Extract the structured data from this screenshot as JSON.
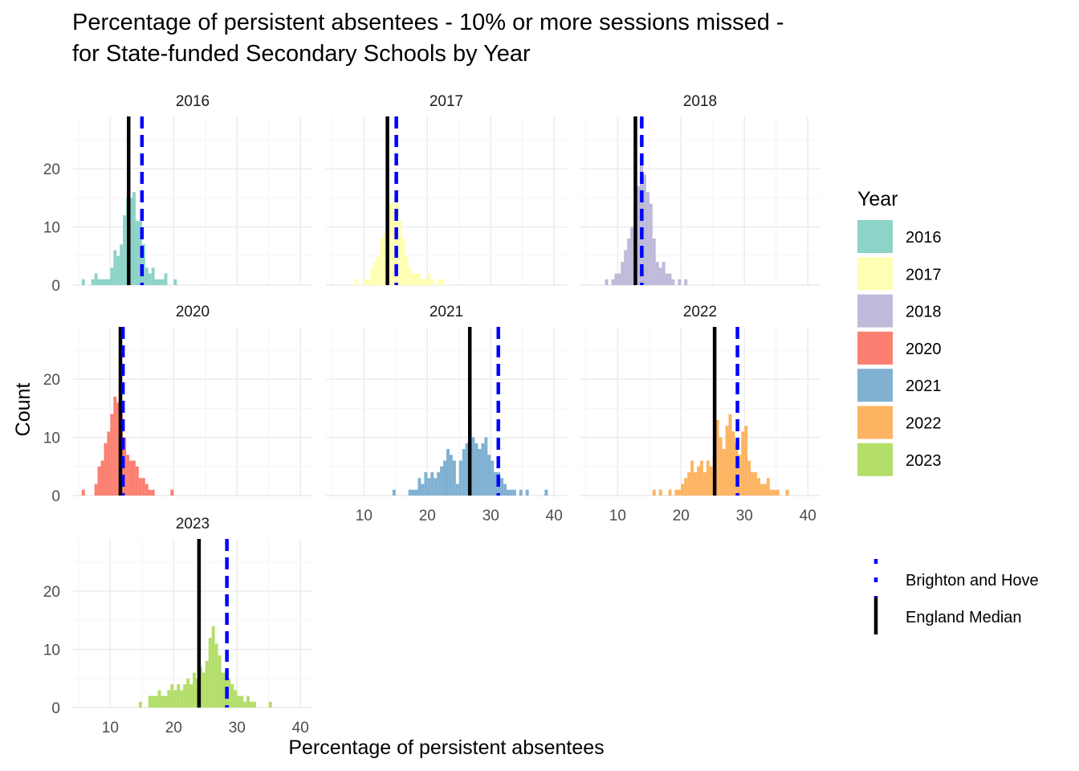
{
  "title": {
    "line1": "Percentage of persistent absentees - 10% or more sessions missed -",
    "line2": "for State-funded Secondary Schools by Year"
  },
  "chart_data": {
    "type": "histogram",
    "xlabel": "Percentage of persistent absentees",
    "ylabel": "Count",
    "xlim": [
      4,
      42
    ],
    "ylim": [
      0,
      29
    ],
    "x_ticks": [
      10,
      20,
      30,
      40
    ],
    "y_ticks": [
      0,
      10,
      20
    ],
    "bin_width": 0.5,
    "grid": true,
    "legend_placement": "right",
    "legend_title": "Year",
    "colors": {
      "2016": "#8dd3c7",
      "2017": "#ffffb3",
      "2018": "#bebada",
      "2020": "#fb8072",
      "2021": "#80b1d3",
      "2022": "#fdb462",
      "2023": "#b3de69"
    },
    "reference_lines": [
      {
        "name": "Brighton and Hove",
        "style": "dashed",
        "color": "#0000ff"
      },
      {
        "name": "England Median",
        "style": "solid",
        "color": "#000000"
      }
    ],
    "panels": [
      {
        "year": "2016",
        "england_median": 12.9,
        "brighton_hove": 15.0,
        "bin_start": 5.5,
        "counts": [
          1,
          0,
          0,
          1,
          2,
          1,
          1,
          1,
          1,
          3,
          6,
          5,
          7,
          12,
          15,
          15,
          16,
          11,
          11,
          7,
          3,
          2,
          3,
          1,
          1,
          1,
          2,
          0,
          0,
          1
        ]
      },
      {
        "year": "2017",
        "england_median": 13.7,
        "brighton_hove": 15.1,
        "bin_start": 7.0,
        "counts": [
          0,
          0,
          0,
          1,
          0,
          0,
          1,
          1,
          3,
          4,
          5,
          8,
          9,
          12,
          14,
          15,
          14,
          11,
          8,
          5,
          3,
          2,
          2,
          2,
          1,
          1,
          2,
          1,
          0,
          1,
          1
        ]
      },
      {
        "year": "2018",
        "england_median": 12.8,
        "brighton_hove": 13.8,
        "bin_start": 7.5,
        "counts": [
          0,
          1,
          0,
          1,
          2,
          2,
          4,
          6,
          8,
          10,
          13,
          17,
          21,
          19,
          16,
          14,
          8,
          4,
          3,
          4,
          2,
          2,
          1,
          0,
          1,
          0,
          1
        ]
      },
      {
        "year": "2020",
        "england_median": 11.6,
        "brighton_hove": 12.0,
        "bin_start": 5.5,
        "counts": [
          1,
          0,
          0,
          0,
          2,
          5,
          6,
          9,
          11,
          14,
          17,
          16,
          14,
          10,
          7,
          6,
          6,
          5,
          3,
          3,
          2,
          1,
          1,
          0,
          0,
          0,
          0,
          0,
          1
        ]
      },
      {
        "year": "2021",
        "england_median": 26.7,
        "brighton_hove": 31.2,
        "bin_start": 14.5,
        "counts": [
          1,
          0,
          0,
          0,
          0,
          1,
          1,
          1,
          3,
          2,
          4,
          3,
          4,
          3,
          4,
          5,
          6,
          8,
          7,
          6,
          2,
          6,
          8,
          9,
          13,
          10,
          9,
          8,
          9,
          10,
          7,
          6,
          4,
          4,
          3,
          2,
          1,
          1,
          1,
          0,
          1,
          0,
          1,
          0,
          0,
          0,
          0,
          0,
          1
        ]
      },
      {
        "year": "2022",
        "england_median": 25.3,
        "brighton_hove": 28.9,
        "bin_start": 15.5,
        "counts": [
          1,
          0,
          1,
          0,
          0,
          1,
          0,
          1,
          1,
          2,
          3,
          4,
          6,
          4,
          5,
          6,
          4,
          6,
          5,
          7,
          13,
          10,
          8,
          12,
          14,
          11,
          9,
          7,
          11,
          12,
          6,
          4,
          4,
          3,
          2,
          2,
          3,
          1,
          1,
          1,
          0,
          0,
          1
        ]
      },
      {
        "year": "2023",
        "england_median": 24.0,
        "brighton_hove": 28.4,
        "bin_start": 14.5,
        "counts": [
          1,
          0,
          0,
          2,
          2,
          2,
          3,
          2,
          2,
          3,
          4,
          3,
          4,
          3,
          4,
          5,
          4,
          6,
          5,
          7,
          6,
          8,
          12,
          14,
          11,
          9,
          6,
          6,
          5,
          4,
          3,
          2,
          2,
          1,
          2,
          1,
          1,
          0,
          0,
          0,
          0,
          1
        ]
      }
    ]
  }
}
